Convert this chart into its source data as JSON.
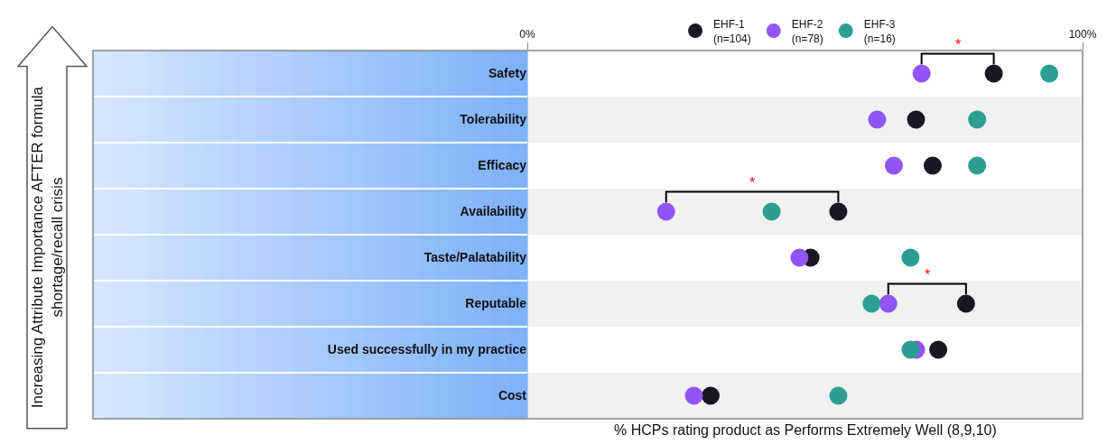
{
  "chart_data": {
    "type": "scatter",
    "categories": [
      "Safety",
      "Tolerability",
      "Efficacy",
      "Availability",
      "Taste/Palatability",
      "Reputable",
      "Used successfully in my practice",
      "Cost"
    ],
    "series": [
      {
        "name": "EHF-1\n(n=104)",
        "color": "#1a1625",
        "values": [
          84,
          70,
          73,
          56,
          51,
          79,
          74,
          33
        ]
      },
      {
        "name": "EHF-2\n(n=78)",
        "color": "#9155f5",
        "values": [
          71,
          63,
          66,
          25,
          49,
          65,
          70,
          30
        ]
      },
      {
        "name": "EHF-3\n(n=16)",
        "color": "#2e9e93",
        "values": [
          94,
          81,
          81,
          44,
          69,
          62,
          69,
          56
        ]
      }
    ],
    "xlabel": "% HCPs rating product as Performs Extremely Well (8,9,10)",
    "xlim": [
      0,
      100
    ],
    "xticks": [
      {
        "value": 0,
        "label": "0%"
      },
      {
        "value": 100,
        "label": "100%"
      }
    ],
    "annotations": [
      "*",
      "*",
      "*",
      "Increasing Attribute Importance AFTER formula shortage/recall crisis"
    ],
    "orientation": "horizontal",
    "marker": "circle",
    "legend": "top",
    "grid": false
  }
}
